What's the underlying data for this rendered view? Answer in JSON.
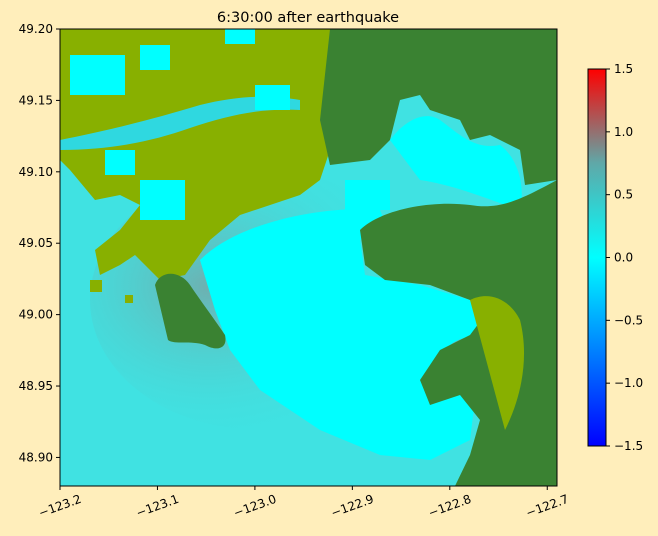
{
  "chart_data": {
    "type": "heatmap",
    "title": "6:30:00 after earthquake",
    "xlabel": "",
    "ylabel": "",
    "xlim": [
      -123.2,
      -122.69
    ],
    "ylim": [
      48.88,
      49.2
    ],
    "x_ticks": [
      -123.2,
      -123.1,
      -123.0,
      -122.9,
      -122.8,
      -122.7
    ],
    "x_tick_labels": [
      "−123.2",
      "−123.1",
      "−123.0",
      "−122.9",
      "−122.8",
      "−122.7"
    ],
    "y_ticks": [
      48.9,
      48.95,
      49.0,
      49.05,
      49.1,
      49.15,
      49.2
    ],
    "y_tick_labels": [
      "48.90",
      "48.95",
      "49.00",
      "49.05",
      "49.10",
      "49.15",
      "49.20"
    ],
    "colorbar": {
      "range": [
        -1.5,
        1.5
      ],
      "ticks": [
        -1.5,
        -1.0,
        -0.5,
        0.0,
        0.5,
        1.0,
        1.5
      ],
      "tick_labels": [
        "−1.5",
        "−1.0",
        "−0.5",
        "0.0",
        "0.5",
        "1.0",
        "1.5"
      ],
      "colormap": [
        "#0000ff",
        "#00ffff",
        "#ff0000"
      ]
    },
    "land_colors": {
      "dry_land": "#3a8232",
      "low_land": "#88b000"
    },
    "water_levels": {
      "strait_of_georgia": 0.25,
      "inner_bays": 0.05,
      "boundary_bay_north": 0.45,
      "semiahmoo_bay_west": 0.5
    },
    "background_color": "#ffeebb"
  }
}
